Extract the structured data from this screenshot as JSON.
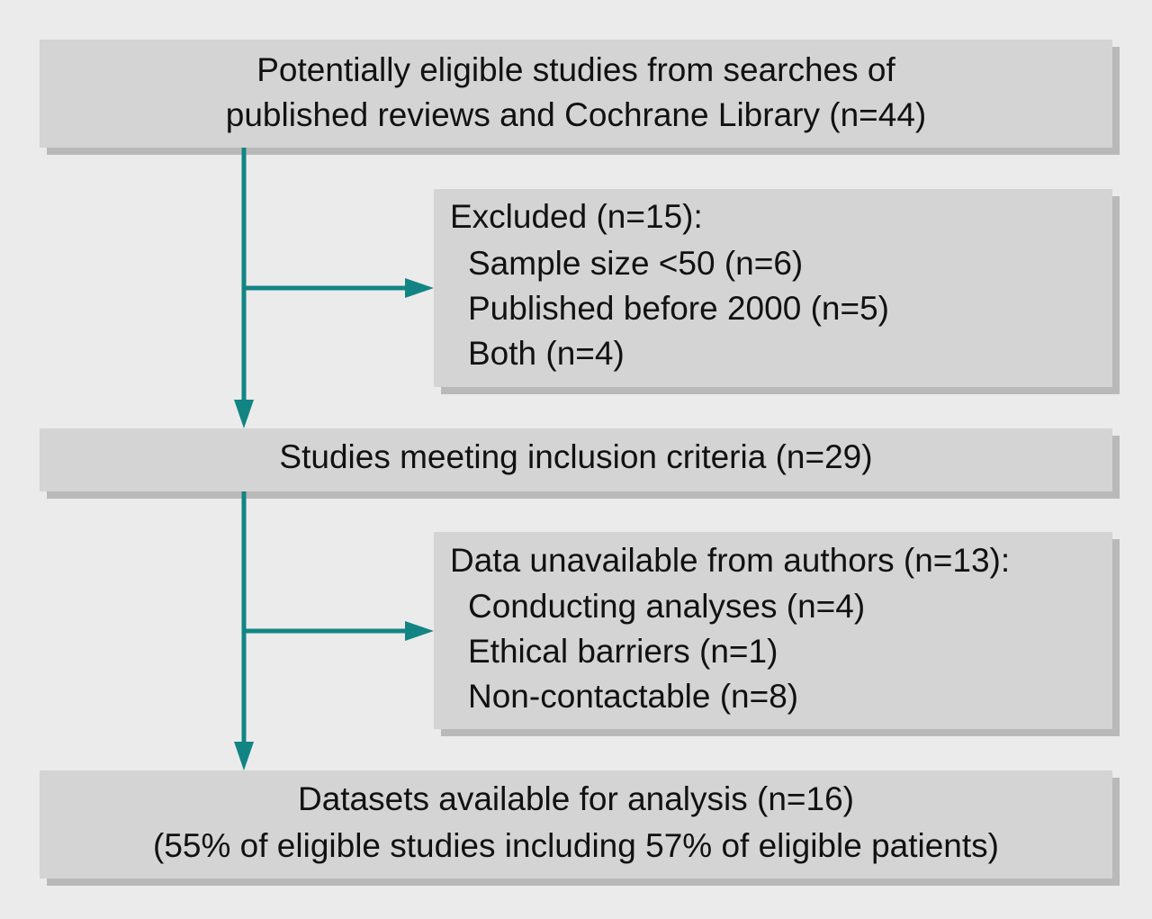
{
  "nodes": [
    {
      "lines": [
        "Potentially eligible studies from searches of",
        "published reviews and Cochrane Library (n=44)"
      ]
    },
    {
      "lines": [
        "Excluded (n=15):",
        "Sample size <50 (n=6)",
        "Published before 2000 (n=5)",
        "Both (n=4)"
      ]
    },
    {
      "lines": [
        "Studies meeting inclusion criteria (n=29)"
      ]
    },
    {
      "lines": [
        "Data unavailable from authors (n=13):",
        "Conducting analyses (n=4)",
        "Ethical barriers (n=1)",
        "Non-contactable (n=8)"
      ]
    },
    {
      "lines": [
        "Datasets available for analysis (n=16)",
        "(55% of eligible studies including 57% of eligible patients)"
      ]
    }
  ]
}
